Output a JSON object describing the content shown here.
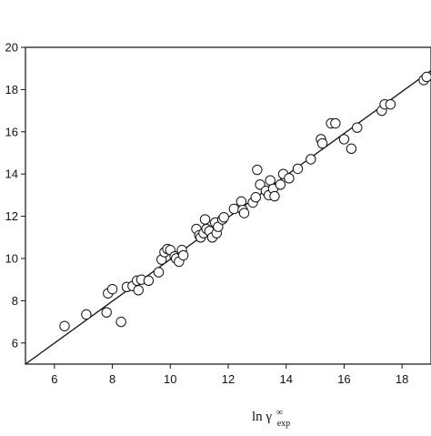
{
  "chart_data": {
    "type": "scatter",
    "title": "",
    "xlabel": {
      "base": "ln γ",
      "superscript": "∞",
      "subscript": "exp"
    },
    "ylabel": "",
    "xlim": [
      5,
      19
    ],
    "ylim": [
      5,
      20
    ],
    "xticks": [
      6,
      8,
      10,
      12,
      14,
      16,
      18
    ],
    "yticks": [
      6,
      8,
      10,
      12,
      14,
      16,
      18,
      20
    ],
    "grid": false,
    "legend": "none",
    "marker": "open-circle",
    "line": {
      "label": "",
      "x": [
        5,
        19
      ],
      "y": [
        5,
        18.9
      ]
    },
    "series": [
      {
        "x": [
          6.35,
          7.1,
          7.8,
          7.85,
          8.0,
          8.3,
          8.5,
          8.7,
          8.9,
          8.85,
          9.0,
          9.25,
          9.6,
          9.7,
          9.8,
          9.9,
          10.0,
          10.15,
          10.2,
          10.3,
          10.4,
          10.45,
          10.9,
          11.0,
          11.05,
          11.15,
          11.2,
          11.25,
          11.35,
          11.45,
          11.55,
          11.6,
          11.65,
          11.8,
          11.85,
          12.2,
          12.45,
          12.5,
          12.55,
          12.85,
          12.95,
          13.0,
          13.1,
          13.3,
          13.4,
          13.45,
          13.55,
          13.6,
          13.8,
          13.9,
          14.1,
          14.4,
          14.85,
          15.2,
          15.25,
          15.55,
          15.7,
          16.0,
          16.25,
          16.45,
          17.3,
          17.4,
          17.6,
          18.75,
          18.85
        ],
        "y": [
          6.8,
          7.35,
          7.45,
          8.35,
          8.55,
          7.0,
          8.65,
          8.7,
          8.5,
          8.95,
          9.0,
          8.95,
          9.35,
          9.95,
          10.3,
          10.45,
          10.4,
          10.1,
          10.0,
          9.85,
          10.4,
          10.15,
          11.4,
          11.1,
          11.0,
          11.2,
          11.85,
          11.4,
          11.3,
          11.0,
          11.7,
          11.2,
          11.5,
          11.85,
          11.95,
          12.35,
          12.7,
          12.3,
          12.15,
          12.65,
          12.9,
          14.2,
          13.5,
          13.2,
          13.0,
          13.7,
          13.3,
          12.95,
          13.5,
          14.0,
          13.8,
          14.25,
          14.7,
          15.65,
          15.45,
          16.4,
          16.4,
          15.65,
          15.2,
          16.2,
          17.0,
          17.3,
          17.3,
          18.45,
          18.6
        ]
      }
    ]
  }
}
